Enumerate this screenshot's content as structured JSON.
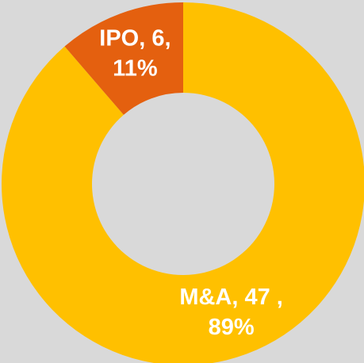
{
  "chart_data": {
    "type": "donut",
    "categories": [
      "M&A",
      "IPO"
    ],
    "values": [
      47,
      6
    ],
    "value_labels": [
      [
        "M&A,  47 ,",
        "89%"
      ],
      [
        "IPO, 6,",
        "11%"
      ]
    ],
    "colors": [
      "#ffc000",
      "#e4600f"
    ]
  }
}
